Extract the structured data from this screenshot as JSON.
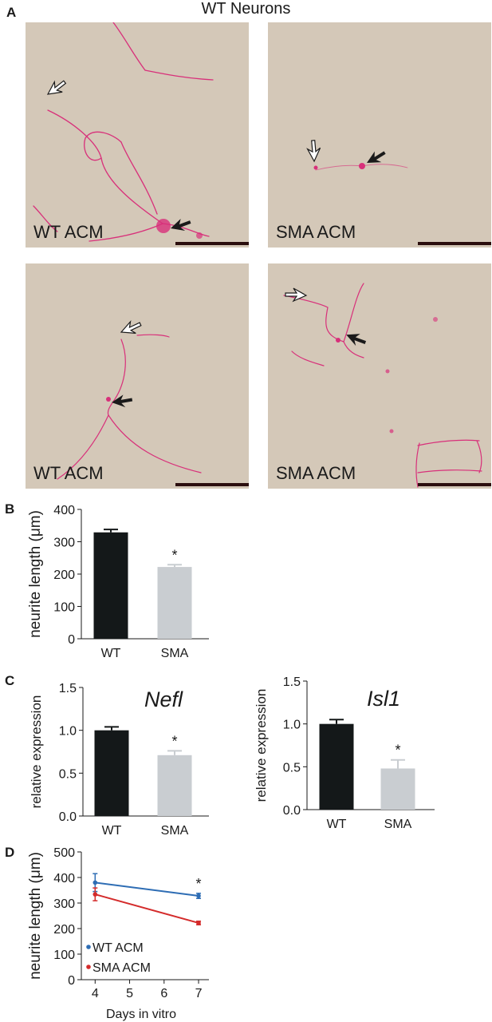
{
  "figure_title": "WT Neurons",
  "panel_letters": {
    "a": "A",
    "b": "B",
    "c": "C",
    "d": "D"
  },
  "micrographs": [
    {
      "label": "WT ACM"
    },
    {
      "label": "SMA ACM"
    },
    {
      "label": "WT ACM"
    },
    {
      "label": "SMA ACM"
    }
  ],
  "colors": {
    "wt_bar": "#141819",
    "sma_bar": "#c9cdd1",
    "wt_line": "#2e6db4",
    "sma_line": "#d42b2b",
    "stain": "#d8307a",
    "background": "#d4c8b8"
  },
  "chart_data": [
    {
      "type": "bar",
      "panel": "B",
      "categories": [
        "WT",
        "SMA"
      ],
      "values": [
        329,
        222
      ],
      "errors": [
        9,
        7
      ],
      "significance": [
        "",
        "*"
      ],
      "ylabel": "neurite length (μm)",
      "ylim": [
        0,
        400
      ],
      "yticks": [
        "0",
        "100",
        "200",
        "300",
        "400"
      ]
    },
    {
      "type": "bar",
      "panel": "C",
      "title": "Nefl",
      "categories": [
        "WT",
        "SMA"
      ],
      "values": [
        1.0,
        0.71
      ],
      "errors": [
        0.04,
        0.05
      ],
      "significance": [
        "",
        "*"
      ],
      "ylabel": "relative expression",
      "ylim": [
        0,
        1.5
      ],
      "yticks": [
        "0.0",
        "0.5",
        "1.0",
        "1.5"
      ]
    },
    {
      "type": "bar",
      "panel": "C",
      "title": "Isl1",
      "categories": [
        "WT",
        "SMA"
      ],
      "values": [
        1.0,
        0.48
      ],
      "errors": [
        0.05,
        0.1
      ],
      "significance": [
        "",
        "*"
      ],
      "ylabel": "relative expression",
      "ylim": [
        0,
        1.5
      ],
      "yticks": [
        "0.0",
        "0.5",
        "1.0",
        "1.5"
      ]
    },
    {
      "type": "line",
      "panel": "D",
      "x": [
        4,
        7
      ],
      "xticks": [
        "4",
        "5",
        "6",
        "7"
      ],
      "xlim": [
        3.6,
        7.3
      ],
      "series": [
        {
          "name": "WT ACM",
          "values": [
            380,
            328
          ],
          "errors": [
            35,
            10
          ]
        },
        {
          "name": "SMA ACM",
          "values": [
            334,
            222
          ],
          "errors": [
            25,
            7
          ]
        }
      ],
      "significance": [
        {
          "x": 7,
          "label": "*"
        }
      ],
      "xlabel": "Days in vitro",
      "ylabel": "neurite length (μm)",
      "ylim": [
        0,
        500
      ],
      "yticks": [
        "0",
        "100",
        "200",
        "300",
        "400",
        "500"
      ],
      "legend": "bottom-left"
    }
  ]
}
